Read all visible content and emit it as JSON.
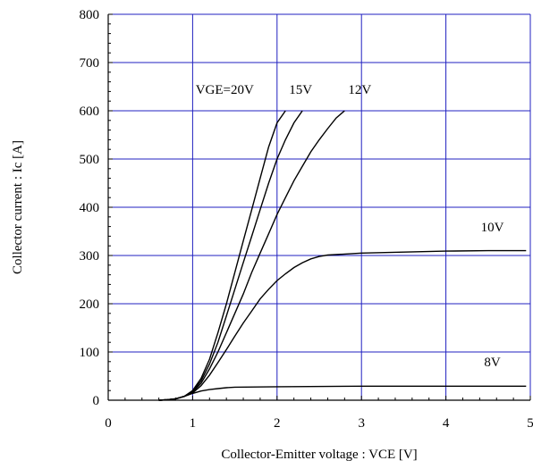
{
  "chart_data": {
    "type": "line",
    "title": "",
    "xlabel": "Collector-Emitter voltage : VCE [V]",
    "ylabel": "Collector current : Ic [A]",
    "xlim": [
      0,
      5
    ],
    "ylim": [
      0,
      800
    ],
    "x_ticks": [
      "0",
      "1",
      "2",
      "3",
      "4",
      "5"
    ],
    "y_ticks": [
      "0",
      "100",
      "200",
      "300",
      "400",
      "500",
      "600",
      "700",
      "800"
    ],
    "grid": true,
    "grid_color": "#2020c0",
    "line_color": "#000000",
    "series": [
      {
        "name": "VGE=20V",
        "points": [
          [
            0.6,
            0
          ],
          [
            0.7,
            1
          ],
          [
            0.8,
            3
          ],
          [
            0.9,
            8
          ],
          [
            1.0,
            20
          ],
          [
            1.1,
            45
          ],
          [
            1.2,
            85
          ],
          [
            1.3,
            140
          ],
          [
            1.4,
            200
          ],
          [
            1.5,
            265
          ],
          [
            1.6,
            330
          ],
          [
            1.7,
            395
          ],
          [
            1.8,
            460
          ],
          [
            1.9,
            525
          ],
          [
            2.0,
            575
          ],
          [
            2.1,
            600
          ]
        ]
      },
      {
        "name": "15V",
        "points": [
          [
            0.6,
            0
          ],
          [
            0.7,
            1
          ],
          [
            0.8,
            3
          ],
          [
            0.9,
            8
          ],
          [
            1.0,
            18
          ],
          [
            1.1,
            40
          ],
          [
            1.2,
            75
          ],
          [
            1.3,
            120
          ],
          [
            1.4,
            175
          ],
          [
            1.5,
            230
          ],
          [
            1.6,
            285
          ],
          [
            1.7,
            340
          ],
          [
            1.8,
            395
          ],
          [
            1.9,
            450
          ],
          [
            2.0,
            500
          ],
          [
            2.1,
            540
          ],
          [
            2.2,
            575
          ],
          [
            2.3,
            600
          ]
        ]
      },
      {
        "name": "12V",
        "points": [
          [
            0.6,
            0
          ],
          [
            0.7,
            1
          ],
          [
            0.8,
            3
          ],
          [
            0.9,
            8
          ],
          [
            1.0,
            17
          ],
          [
            1.1,
            35
          ],
          [
            1.2,
            65
          ],
          [
            1.3,
            100
          ],
          [
            1.4,
            140
          ],
          [
            1.5,
            180
          ],
          [
            1.6,
            220
          ],
          [
            1.7,
            265
          ],
          [
            1.8,
            305
          ],
          [
            1.9,
            345
          ],
          [
            2.0,
            385
          ],
          [
            2.1,
            420
          ],
          [
            2.2,
            455
          ],
          [
            2.3,
            485
          ],
          [
            2.4,
            515
          ],
          [
            2.5,
            540
          ],
          [
            2.6,
            563
          ],
          [
            2.7,
            585
          ],
          [
            2.8,
            600
          ]
        ]
      },
      {
        "name": "10V",
        "points": [
          [
            0.6,
            0
          ],
          [
            0.7,
            1
          ],
          [
            0.8,
            3
          ],
          [
            0.9,
            8
          ],
          [
            1.0,
            15
          ],
          [
            1.1,
            30
          ],
          [
            1.2,
            52
          ],
          [
            1.3,
            78
          ],
          [
            1.4,
            105
          ],
          [
            1.5,
            133
          ],
          [
            1.6,
            160
          ],
          [
            1.7,
            185
          ],
          [
            1.8,
            210
          ],
          [
            1.9,
            230
          ],
          [
            2.0,
            248
          ],
          [
            2.1,
            262
          ],
          [
            2.2,
            275
          ],
          [
            2.3,
            285
          ],
          [
            2.4,
            293
          ],
          [
            2.5,
            298
          ],
          [
            2.6,
            301
          ],
          [
            2.8,
            303
          ],
          [
            3.0,
            305
          ],
          [
            3.5,
            307
          ],
          [
            4.0,
            309
          ],
          [
            4.5,
            310
          ],
          [
            4.95,
            310
          ]
        ]
      },
      {
        "name": "8V",
        "points": [
          [
            0.6,
            0
          ],
          [
            0.7,
            1
          ],
          [
            0.8,
            3
          ],
          [
            0.9,
            8
          ],
          [
            1.0,
            14
          ],
          [
            1.1,
            19
          ],
          [
            1.2,
            22
          ],
          [
            1.3,
            24
          ],
          [
            1.4,
            26
          ],
          [
            1.5,
            27
          ],
          [
            2.0,
            28
          ],
          [
            3.0,
            29
          ],
          [
            4.0,
            29
          ],
          [
            4.95,
            29
          ]
        ]
      }
    ],
    "curve_labels": [
      {
        "text": "VGE=20V",
        "x": 1.38,
        "y": 635
      },
      {
        "text": "15V",
        "x": 2.28,
        "y": 635
      },
      {
        "text": "12V",
        "x": 2.98,
        "y": 635
      },
      {
        "text": "10V",
        "x": 4.55,
        "y": 350
      },
      {
        "text": "8V",
        "x": 4.55,
        "y": 70
      }
    ]
  }
}
